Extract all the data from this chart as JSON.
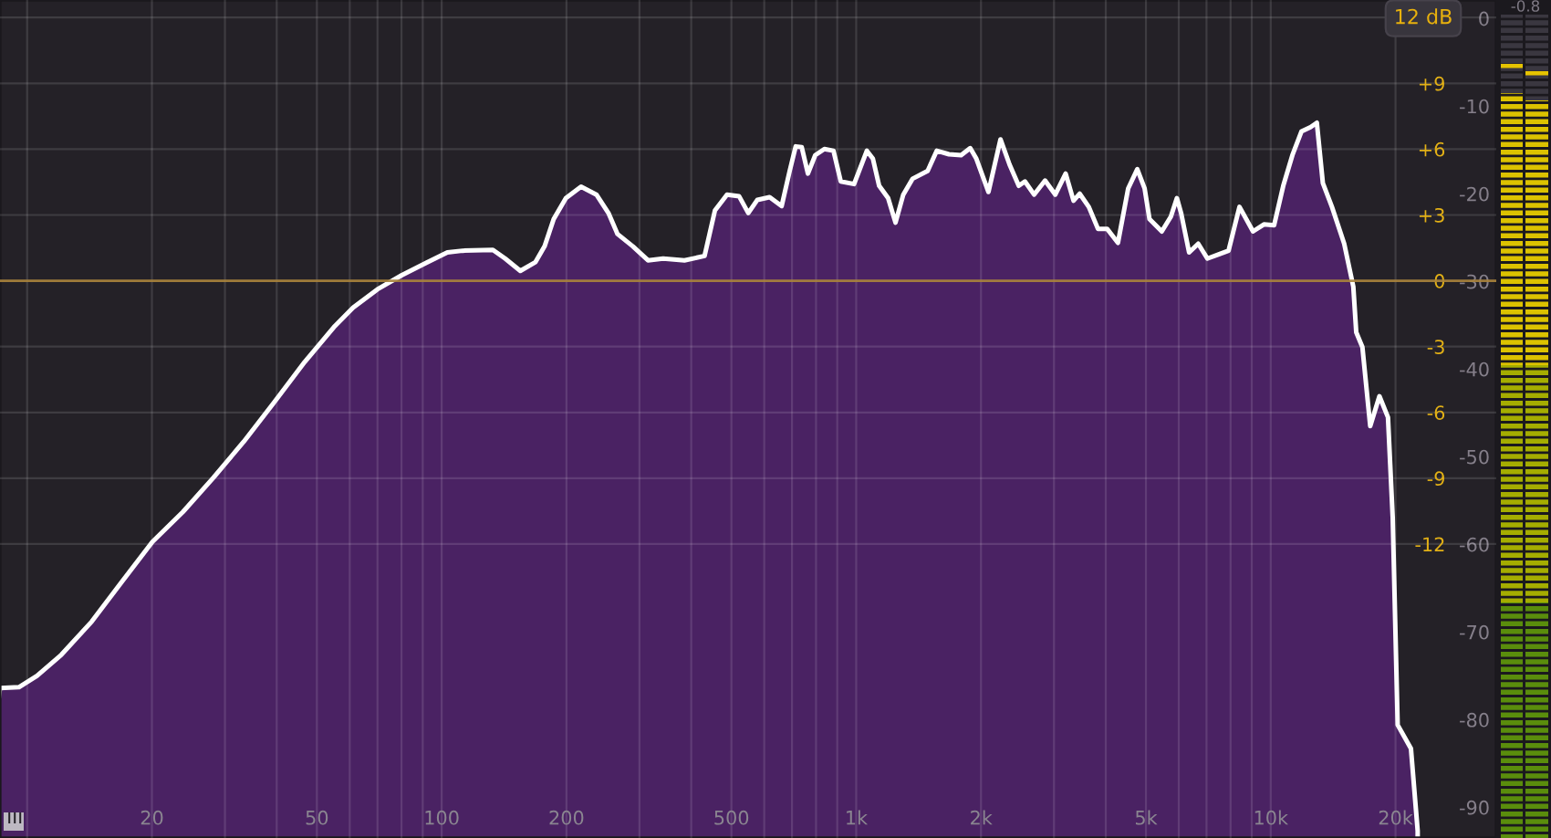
{
  "chart_data": {
    "type": "area",
    "x": [
      8.6,
      9.55,
      10.56,
      12.09,
      14.32,
      16.96,
      20.06,
      23.76,
      28.13,
      33.29,
      39.43,
      46.71,
      55.25,
      61.13,
      70.0,
      80.1,
      91.7,
      103.2,
      112.3,
      132.9,
      142.3,
      154.8,
      168.4,
      177.1,
      186.3,
      199.4,
      216.9,
      236.2,
      252.5,
      265.6,
      289.2,
      314.6,
      342.2,
      385.2,
      430.7,
      456.3,
      487.9,
      522.0,
      549.1,
      577.6,
      618.2,
      661.0,
      691.1,
      714.6,
      739.0,
      764.8,
      796.5,
      837.8,
      881.4,
      917.8,
      988.3,
      1061,
      1097,
      1136,
      1194,
      1244,
      1299,
      1367,
      1487,
      1564,
      1674,
      1791,
      1884,
      1949,
      2085,
      2229,
      2345,
      2467,
      2553,
      2686,
      2855,
      3022,
      3201,
      3344,
      3461,
      3640,
      3830,
      4029,
      4280,
      4530,
      4765,
      4963,
      5100,
      5460,
      5743,
      5938,
      6078,
      6355,
      6685,
      7034,
      7518,
      7911,
      8407,
      9063,
      9628,
      10190,
      10720,
      11280,
      11860,
      12480,
      12920,
      13360,
      14050,
      15040,
      15820,
      16080,
      16640,
      17380,
      18290,
      19180,
      19690,
      20240,
      21790,
      22620
    ],
    "series": [
      {
        "color": "#4a2263",
        "axis": "y2",
        "values": [
          -76.4,
          -76.3,
          -75.0,
          -72.6,
          -68.8,
          -64.2,
          -59.7,
          -56.3,
          -52.4,
          -48.3,
          -43.8,
          -39.2,
          -35.1,
          -33.0,
          -30.9,
          -29.3,
          -27.9,
          -26.7,
          -26.5,
          -26.4,
          -27.4,
          -28.8,
          -27.8,
          -26.0,
          -22.9,
          -20.5,
          -19.2,
          -20.1,
          -22.2,
          -24.6,
          -26.0,
          -27.6,
          -27.4,
          -27.6,
          -27.1,
          -21.9,
          -20.1,
          -20.3,
          -22.2,
          -20.7,
          -20.4,
          -21.4,
          -17.4,
          -14.6,
          -14.7,
          -17.7,
          -15.6,
          -14.9,
          -15.1,
          -18.6,
          -18.9,
          -15.1,
          -16.0,
          -19.1,
          -20.5,
          -23.3,
          -20.1,
          -18.3,
          -17.4,
          -15.1,
          -15.5,
          -15.6,
          -14.8,
          -16.0,
          -19.8,
          -13.8,
          -16.7,
          -19.1,
          -18.6,
          -20.1,
          -18.5,
          -20.1,
          -17.7,
          -20.8,
          -20.0,
          -21.5,
          -24.0,
          -24.0,
          -25.6,
          -19.4,
          -17.2,
          -19.4,
          -22.9,
          -24.3,
          -22.6,
          -20.5,
          -22.2,
          -26.7,
          -25.7,
          -27.4,
          -26.9,
          -26.5,
          -21.5,
          -24.3,
          -23.5,
          -23.6,
          -19.1,
          -15.6,
          -12.9,
          -12.4,
          -11.9,
          -18.8,
          -21.5,
          -25.7,
          -30.6,
          -35.8,
          -37.5,
          -46.5,
          -43.1,
          -45.5,
          -56.9,
          -80.6,
          -83.3,
          -92.7
        ]
      }
    ],
    "log": "x",
    "xlim": [
      8.6,
      35000
    ],
    "xticks": [
      {
        "value": 10,
        "label": null
      },
      20,
      {
        "value": 30,
        "label": null
      },
      {
        "value": 40,
        "label": null
      },
      50,
      {
        "value": 60,
        "label": null
      },
      {
        "value": 70,
        "label": null
      },
      {
        "value": 80,
        "label": null
      },
      {
        "value": 90,
        "label": null
      },
      100,
      200,
      {
        "value": 300,
        "label": null
      },
      {
        "value": 400,
        "label": null
      },
      500,
      {
        "value": 600,
        "label": null
      },
      {
        "value": 700,
        "label": null
      },
      {
        "value": 800,
        "label": null
      },
      {
        "value": 900,
        "label": null
      },
      {
        "value": 1000,
        "label": "1k"
      },
      {
        "value": 2000,
        "label": "2k"
      },
      {
        "value": 3000,
        "label": null
      },
      {
        "value": 4000,
        "label": null
      },
      {
        "value": 5000,
        "label": "5k"
      },
      {
        "value": 6000,
        "label": null
      },
      {
        "value": 7000,
        "label": null
      },
      {
        "value": 8000,
        "label": null
      },
      {
        "value": 9000,
        "label": null
      },
      {
        "value": 10000,
        "label": "10k"
      },
      {
        "value": 20000,
        "label": "20k"
      }
    ],
    "ylim": [
      -25.4,
      12.8
    ],
    "yticks": [
      -12,
      -9,
      -6,
      -3,
      0,
      {
        "value": 3,
        "label": "+3"
      },
      {
        "value": 6,
        "label": "+6"
      },
      {
        "value": 9,
        "label": "+9"
      },
      {
        "value": 12,
        "label": null
      }
    ],
    "y2lim": [
      -93.5,
      2.1
    ],
    "y2ticks": [
      -90,
      -80,
      -70,
      -60,
      -50,
      -40,
      -30,
      -20,
      -10,
      0
    ],
    "grid": true,
    "ref_lines": [
      {
        "axis": "y",
        "value": 0,
        "color": "#a8823a"
      }
    ],
    "annotations": [
      "12 dB",
      "-0.8"
    ]
  }
}
